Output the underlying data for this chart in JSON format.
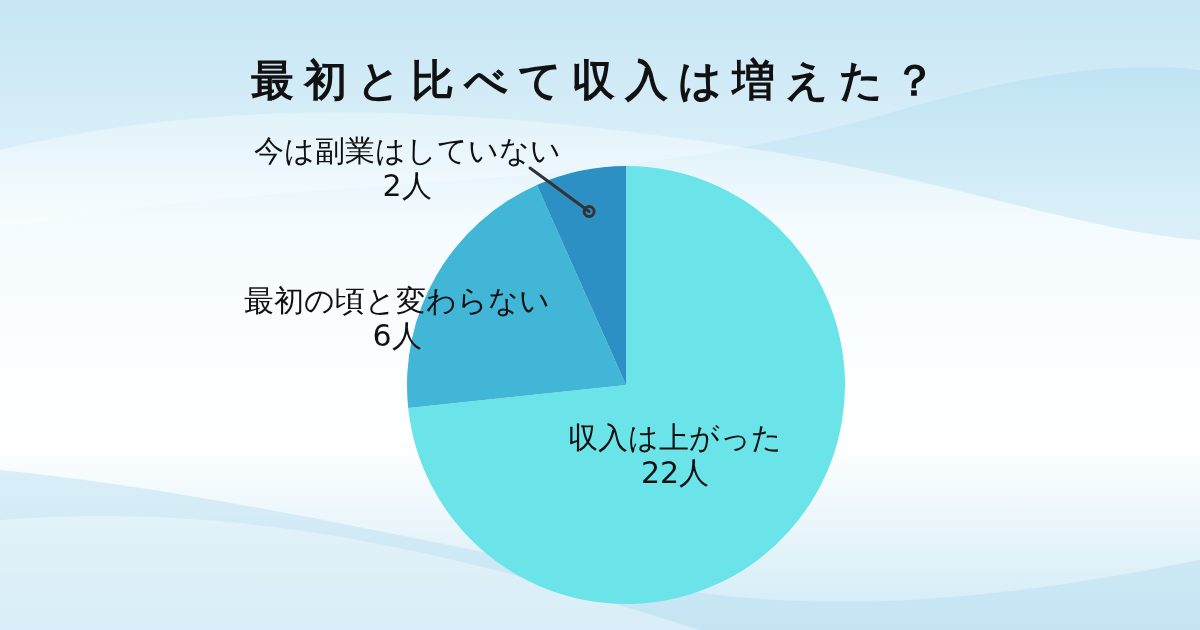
{
  "chart_data": {
    "type": "pie",
    "title": "最初と比べて収入は増えた？",
    "categories": [
      "収入は上がった",
      "最初の頃と変わらない",
      "今は副業はしていない"
    ],
    "values": [
      22,
      6,
      2
    ],
    "colors": [
      "#6ae4e8",
      "#42b6d6",
      "#2c90c4"
    ],
    "value_labels": [
      "22人",
      "6人",
      "2人"
    ]
  }
}
